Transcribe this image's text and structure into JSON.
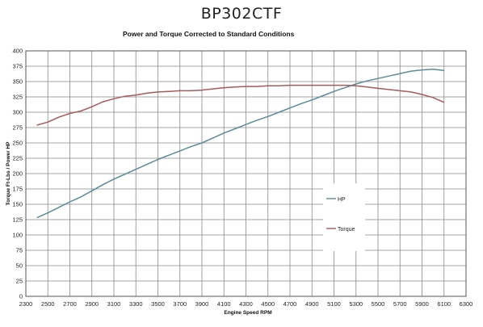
{
  "chart_data": {
    "type": "line",
    "title": "BP302CTF",
    "subtitle": "Power and Torque Corrected to Standard Conditions",
    "xlabel": "Engine Speed RPM",
    "ylabel": "Torque Ft-Lbs / Power HP",
    "xlim": [
      2300,
      6300
    ],
    "ylim": [
      0,
      400
    ],
    "x_ticks": [
      2300,
      2500,
      2700,
      2900,
      3100,
      3300,
      3500,
      3700,
      3900,
      4100,
      4300,
      4500,
      4700,
      4900,
      5100,
      5300,
      5500,
      5700,
      5900,
      6100,
      6300
    ],
    "y_ticks": [
      0,
      25,
      50,
      75,
      100,
      125,
      150,
      175,
      200,
      225,
      250,
      275,
      300,
      325,
      350,
      375,
      400
    ],
    "grid": true,
    "legend_position": "lower-right",
    "series": [
      {
        "name": "HP",
        "color": "#5b8a9a",
        "x": [
          2400,
          2500,
          2600,
          2700,
          2800,
          2900,
          3000,
          3100,
          3200,
          3300,
          3400,
          3500,
          3600,
          3700,
          3800,
          3900,
          4000,
          4100,
          4200,
          4300,
          4400,
          4500,
          4600,
          4700,
          4800,
          4900,
          5000,
          5100,
          5200,
          5300,
          5400,
          5500,
          5600,
          5700,
          5800,
          5900,
          6000,
          6100
        ],
        "values": [
          128,
          136,
          145,
          154,
          162,
          172,
          182,
          191,
          199,
          207,
          215,
          223,
          230,
          237,
          244,
          250,
          258,
          266,
          273,
          280,
          287,
          293,
          300,
          307,
          314,
          320,
          327,
          334,
          340,
          346,
          351,
          355,
          359,
          363,
          367,
          369,
          370,
          368
        ]
      },
      {
        "name": "Torque",
        "color": "#a85a5a",
        "x": [
          2400,
          2500,
          2600,
          2700,
          2800,
          2900,
          3000,
          3100,
          3200,
          3300,
          3400,
          3500,
          3600,
          3700,
          3800,
          3900,
          4000,
          4100,
          4200,
          4300,
          4400,
          4500,
          4600,
          4700,
          4800,
          4900,
          5000,
          5100,
          5200,
          5300,
          5400,
          5500,
          5600,
          5700,
          5800,
          5900,
          6000,
          6100
        ],
        "values": [
          279,
          284,
          292,
          298,
          302,
          309,
          317,
          322,
          326,
          328,
          331,
          333,
          334,
          335,
          335,
          336,
          338,
          340,
          341,
          342,
          342,
          343,
          343,
          344,
          344,
          344,
          344,
          344,
          344,
          343,
          341,
          339,
          337,
          335,
          333,
          329,
          324,
          316
        ]
      }
    ]
  }
}
